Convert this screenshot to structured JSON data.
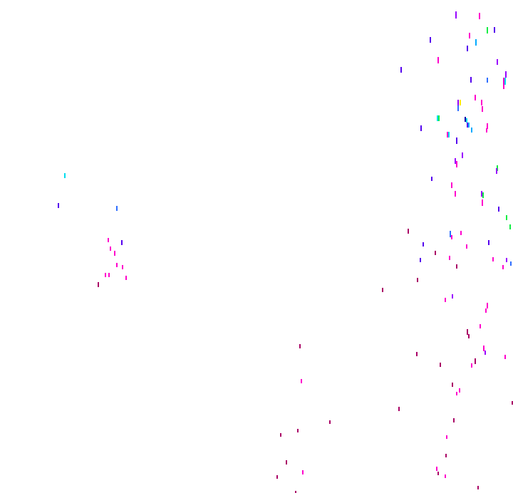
{
  "background": "#ffffff",
  "palette": {
    "magenta": "#ff00cc",
    "purple": "#9900ff",
    "violet": "#5500ee",
    "blue": "#2f6fff",
    "cyan": "#00ddee",
    "sky": "#00aaff",
    "green": "#11ee44",
    "yellow": "#ffee00",
    "maroon": "#aa0066",
    "navy": "#0000aa"
  }
}
